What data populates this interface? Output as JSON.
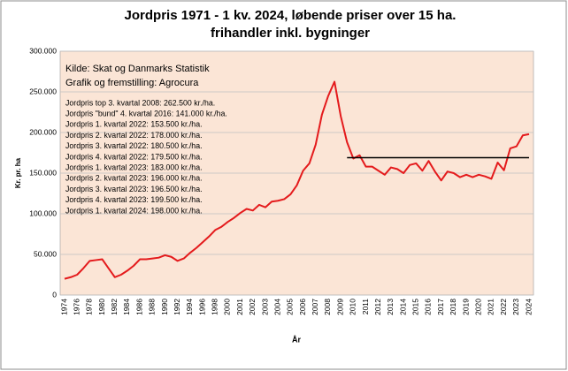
{
  "chart_data": {
    "type": "line",
    "title": [
      "Jordpris 1971 - 1 kv. 2024, løbende priser over 15 ha.",
      "frihandler inkl. bygninger"
    ],
    "ylabel": "Kr. pr. ha",
    "xlabel": "År",
    "annotations": [
      "Kilde: Skat og Danmarks Statistik",
      "Grafik og fremstilling: Agrocura"
    ],
    "notes": [
      "Jordpris top 3. kvartal 2008: 262.500 kr./ha.",
      "Jordpris \"bund\" 4. kvartal 2016: 141.000 kr./ha.",
      "Jordpris 1. kvartal 2022: 153.500 kr./ha.",
      "Jordpris 2. kvartal 2022: 178.000 kr./ha.",
      "Jordpris 3. kvartal 2022: 180.500 kr./ha.",
      "Jordpris 4. kvartal 2022: 179.500 kr./ha.",
      "Jordpris 1. kvartal 2023: 183.000 kr./ha.",
      "Jordpris 2. kvartal 2023: 196.000 kr./ha.",
      "Jordpris 3. kvartal 2023: 196.500 kr./ha.",
      "Jordpris 4. kvartal 2023: 199.500 kr./ha.",
      "Jordpris 1. kvartal 2024: 198.000 kr./ha."
    ],
    "categories": [
      "1974",
      null,
      "1976",
      null,
      "1978",
      null,
      "1980",
      null,
      "1982",
      null,
      "1984",
      null,
      "1986",
      null,
      "1988",
      null,
      "1990",
      null,
      "1992",
      null,
      "1994",
      null,
      "1996",
      null,
      "1998",
      null,
      "2000",
      null,
      "2001",
      null,
      "2002",
      null,
      "2003",
      null,
      "2004",
      null,
      "2005",
      null,
      "2006",
      null,
      "2007",
      null,
      "2008",
      null,
      "2009",
      null,
      "2010",
      null,
      "2011",
      null,
      "2012",
      null,
      "2013",
      null,
      "2014",
      null,
      "2015",
      null,
      "2016",
      null,
      "2017",
      null,
      "2018",
      null,
      "2019",
      null,
      "2020",
      null,
      "2021",
      null,
      "2022",
      null,
      "2023",
      null,
      "2024"
    ],
    "series": [
      {
        "color": "#e41a1c",
        "values": [
          20000,
          22000,
          25000,
          33000,
          42000,
          43000,
          44000,
          33000,
          22000,
          25000,
          30000,
          36000,
          44000,
          44000,
          45000,
          46000,
          49000,
          47000,
          42000,
          45000,
          52000,
          58000,
          65000,
          72000,
          80000,
          84000,
          90000,
          95000,
          101000,
          106000,
          104000,
          111000,
          108000,
          115000,
          116000,
          118000,
          124000,
          135000,
          153000,
          162000,
          185000,
          222000,
          245000,
          262500,
          220000,
          188000,
          168000,
          172000,
          158000,
          158000,
          153000,
          148000,
          157000,
          155000,
          150000,
          160000,
          162000,
          153000,
          165000,
          152000,
          141000,
          152000,
          150000,
          145000,
          148000,
          145000,
          148000,
          146000,
          143000,
          163000,
          153500,
          180500,
          183000,
          196500,
          198000
        ]
      },
      {
        "color": "#000000",
        "values": [
          null,
          null,
          null,
          null,
          null,
          null,
          null,
          null,
          null,
          null,
          null,
          null,
          null,
          null,
          null,
          null,
          null,
          null,
          null,
          null,
          null,
          null,
          null,
          null,
          null,
          null,
          null,
          null,
          null,
          null,
          null,
          null,
          null,
          null,
          null,
          null,
          null,
          null,
          null,
          null,
          null,
          null,
          null,
          null,
          null,
          169000,
          169000,
          169000,
          169000,
          169000,
          169000,
          169000,
          169000,
          169000,
          169000,
          169000,
          169000,
          169000,
          169000,
          169000,
          169000,
          169000,
          169000,
          169000,
          169000,
          169000,
          169000,
          169000,
          169000,
          169000,
          169000,
          169000,
          169000,
          169000,
          169000
        ]
      }
    ],
    "ylim": [
      0,
      300000
    ],
    "yticks": [
      0,
      {
        "value": 50000,
        "label": "50.000"
      },
      {
        "value": 100000,
        "label": "100.000"
      },
      {
        "value": 150000,
        "label": "150.000"
      },
      {
        "value": 200000,
        "label": "200.000"
      },
      {
        "value": 250000,
        "label": "250.000"
      },
      {
        "value": 300000,
        "label": "300.000"
      }
    ],
    "grid": true,
    "plot_background": "#fbe5d6"
  }
}
